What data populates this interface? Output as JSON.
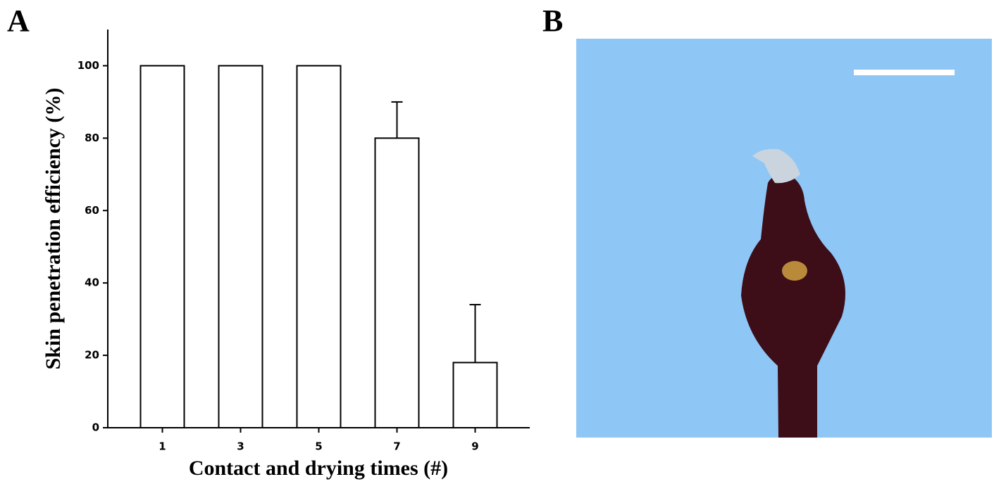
{
  "chart_data": {
    "type": "bar",
    "panel_label": "A",
    "x_label": "Contact and drying times (#)",
    "y_label": "Skin penetration efficiency (%)",
    "categories": [
      "1",
      "3",
      "5",
      "7",
      "9"
    ],
    "values": [
      100,
      100,
      100,
      80,
      18
    ],
    "errors": [
      null,
      null,
      null,
      10,
      16
    ],
    "color": "#ffffff",
    "ylim": [
      0,
      110
    ],
    "yticks": [
      0,
      20,
      40,
      60,
      80,
      100
    ],
    "grid": false
  },
  "image_panel": {
    "label": "B"
  }
}
